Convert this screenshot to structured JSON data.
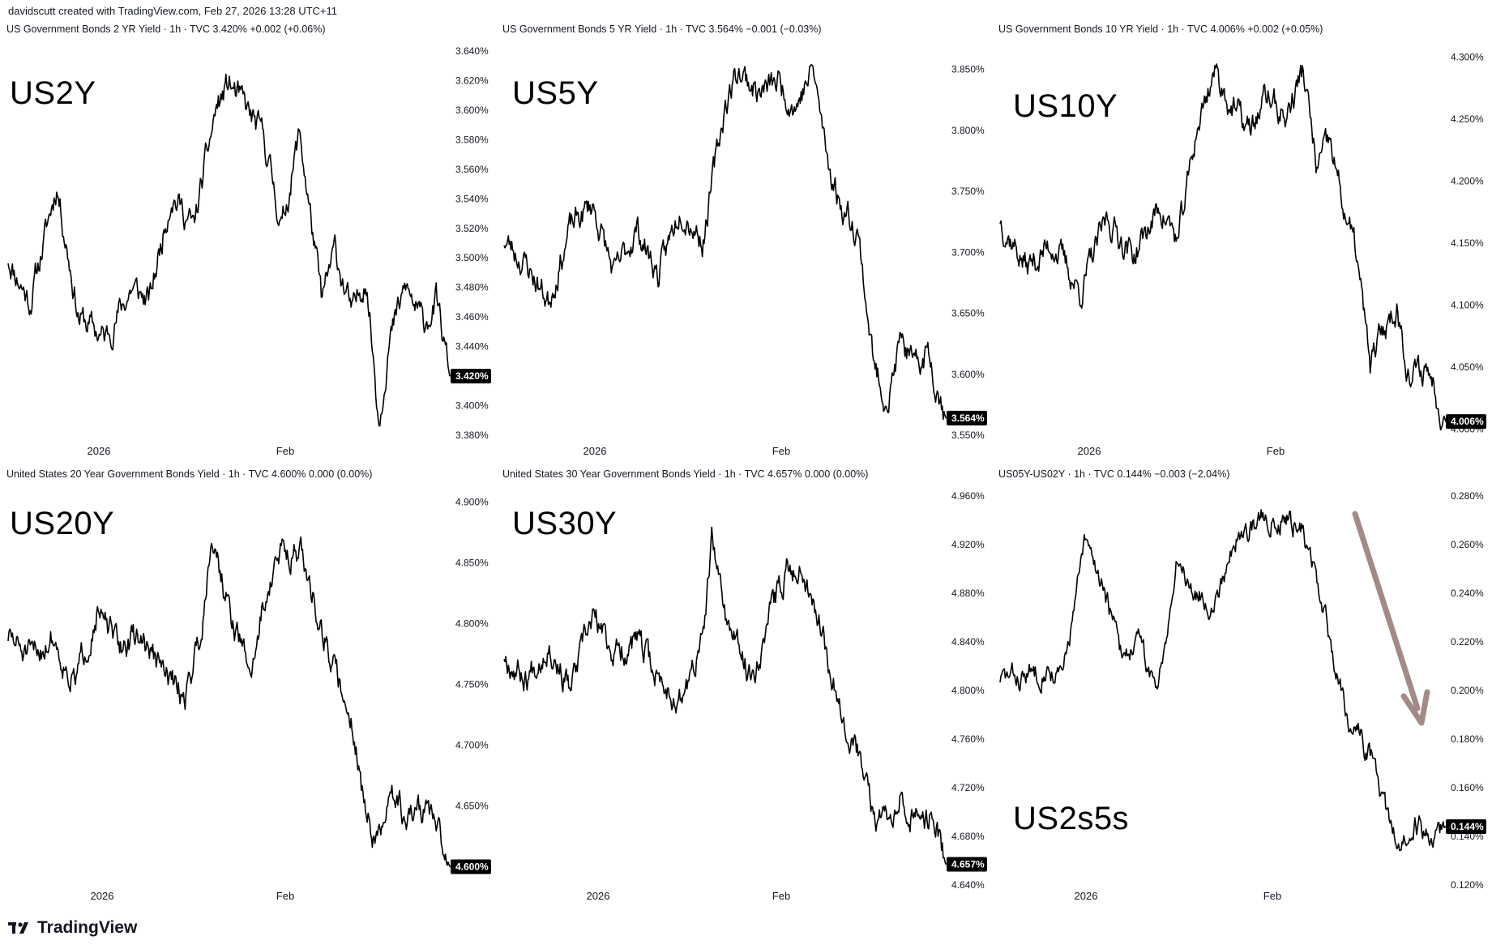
{
  "header": {
    "credit": "davidscutt created with TradingView.com, Feb 27, 2026 13:28 UTC+11"
  },
  "footer": {
    "brand": "TradingView"
  },
  "colors": {
    "line": "#000000",
    "badge": "#000000",
    "arrow": "#a48a86"
  },
  "chart_data": [
    {
      "type": "line",
      "title": "US Government Bonds 2 YR Yield · 1h · TVC  3.420%  +0.002 (+0.06%)",
      "label": "US2Y",
      "yticks": [
        "3.640%",
        "3.620%",
        "3.600%",
        "3.580%",
        "3.560%",
        "3.540%",
        "3.520%",
        "3.500%",
        "3.480%",
        "3.460%",
        "3.440%",
        "3.400%",
        "3.380%"
      ],
      "ylim": [
        3.38,
        3.64
      ],
      "last_value": "3.420%",
      "x_labels": [
        "2026",
        "Feb"
      ],
      "anchors": [
        [
          0,
          3.5
        ],
        [
          0.05,
          3.47
        ],
        [
          0.11,
          3.55
        ],
        [
          0.16,
          3.46
        ],
        [
          0.22,
          3.445
        ],
        [
          0.28,
          3.48
        ],
        [
          0.32,
          3.47
        ],
        [
          0.37,
          3.545
        ],
        [
          0.42,
          3.52
        ],
        [
          0.47,
          3.6
        ],
        [
          0.5,
          3.618
        ],
        [
          0.54,
          3.6
        ],
        [
          0.58,
          3.58
        ],
        [
          0.62,
          3.52
        ],
        [
          0.66,
          3.585
        ],
        [
          0.71,
          3.47
        ],
        [
          0.74,
          3.505
        ],
        [
          0.78,
          3.46
        ],
        [
          0.81,
          3.49
        ],
        [
          0.84,
          3.39
        ],
        [
          0.86,
          3.44
        ],
        [
          0.9,
          3.48
        ],
        [
          0.94,
          3.455
        ],
        [
          0.97,
          3.47
        ],
        [
          1.0,
          3.42
        ]
      ],
      "noise": 0.009,
      "seed": 11
    },
    {
      "type": "line",
      "title": "US Government Bonds 5 YR Yield · 1h · TVC  3.564%  −0.001 (−0.03%)",
      "label": "US5Y",
      "yticks": [
        "3.850%",
        "3.800%",
        "3.750%",
        "3.700%",
        "3.650%",
        "3.600%",
        "3.550%"
      ],
      "ylim": [
        3.55,
        3.865
      ],
      "last_value": "3.564%",
      "x_labels": [
        "2026",
        "Feb"
      ],
      "anchors": [
        [
          0,
          3.71
        ],
        [
          0.05,
          3.69
        ],
        [
          0.1,
          3.66
        ],
        [
          0.15,
          3.72
        ],
        [
          0.2,
          3.74
        ],
        [
          0.25,
          3.68
        ],
        [
          0.3,
          3.72
        ],
        [
          0.35,
          3.68
        ],
        [
          0.4,
          3.74
        ],
        [
          0.45,
          3.71
        ],
        [
          0.5,
          3.82
        ],
        [
          0.53,
          3.85
        ],
        [
          0.58,
          3.83
        ],
        [
          0.62,
          3.84
        ],
        [
          0.66,
          3.82
        ],
        [
          0.7,
          3.85
        ],
        [
          0.73,
          3.78
        ],
        [
          0.76,
          3.74
        ],
        [
          0.8,
          3.72
        ],
        [
          0.84,
          3.6
        ],
        [
          0.87,
          3.58
        ],
        [
          0.9,
          3.63
        ],
        [
          0.93,
          3.6
        ],
        [
          0.96,
          3.62
        ],
        [
          1.0,
          3.564
        ]
      ],
      "noise": 0.011,
      "seed": 23
    },
    {
      "type": "line",
      "title": "US Government Bonds 10 YR Yield · 1h · TVC  4.006%  +0.002 (+0.05%)",
      "label": "US10Y",
      "yticks": [
        "4.300%",
        "4.250%",
        "4.200%",
        "4.150%",
        "4.100%",
        "4.050%",
        "4.000%"
      ],
      "ylim": [
        3.995,
        4.305
      ],
      "last_value": "4.006%",
      "x_labels": [
        "2026",
        "Feb"
      ],
      "anchors": [
        [
          0,
          4.17
        ],
        [
          0.06,
          4.13
        ],
        [
          0.12,
          4.15
        ],
        [
          0.18,
          4.11
        ],
        [
          0.24,
          4.17
        ],
        [
          0.3,
          4.14
        ],
        [
          0.36,
          4.18
        ],
        [
          0.4,
          4.15
        ],
        [
          0.44,
          4.24
        ],
        [
          0.48,
          4.29
        ],
        [
          0.52,
          4.26
        ],
        [
          0.56,
          4.24
        ],
        [
          0.6,
          4.27
        ],
        [
          0.64,
          4.25
        ],
        [
          0.68,
          4.29
        ],
        [
          0.71,
          4.21
        ],
        [
          0.74,
          4.23
        ],
        [
          0.77,
          4.18
        ],
        [
          0.8,
          4.14
        ],
        [
          0.83,
          4.05
        ],
        [
          0.86,
          4.08
        ],
        [
          0.89,
          4.1
        ],
        [
          0.92,
          4.04
        ],
        [
          0.96,
          4.05
        ],
        [
          1.0,
          4.006
        ]
      ],
      "noise": 0.011,
      "seed": 37
    },
    {
      "type": "line",
      "title": "United States 20 Year Government Bonds Yield · 1h · TVC  4.600%  0.000 (0.00%)",
      "label": "US20Y",
      "yticks": [
        "4.900%",
        "4.850%",
        "4.800%",
        "4.750%",
        "4.700%",
        "4.650%",
        "4.600%"
      ],
      "ylim": [
        4.585,
        4.905
      ],
      "last_value": "4.600%",
      "x_labels": [
        "2026",
        "Feb"
      ],
      "anchors": [
        [
          0,
          4.79
        ],
        [
          0.05,
          4.77
        ],
        [
          0.1,
          4.79
        ],
        [
          0.15,
          4.75
        ],
        [
          0.2,
          4.81
        ],
        [
          0.25,
          4.78
        ],
        [
          0.3,
          4.79
        ],
        [
          0.35,
          4.76
        ],
        [
          0.4,
          4.74
        ],
        [
          0.44,
          4.8
        ],
        [
          0.46,
          4.88
        ],
        [
          0.5,
          4.81
        ],
        [
          0.55,
          4.76
        ],
        [
          0.58,
          4.82
        ],
        [
          0.62,
          4.86
        ],
        [
          0.66,
          4.86
        ],
        [
          0.7,
          4.81
        ],
        [
          0.74,
          4.76
        ],
        [
          0.78,
          4.72
        ],
        [
          0.81,
          4.64
        ],
        [
          0.84,
          4.62
        ],
        [
          0.87,
          4.66
        ],
        [
          0.9,
          4.64
        ],
        [
          0.95,
          4.65
        ],
        [
          1.0,
          4.6
        ]
      ],
      "noise": 0.011,
      "seed": 51
    },
    {
      "type": "line",
      "title": "United States 30 Year Government Bonds Yield · 1h · TVC  4.657%  0.000 (0.00%)",
      "label": "US30Y",
      "yticks": [
        "4.960%",
        "4.920%",
        "4.880%",
        "4.840%",
        "4.800%",
        "4.760%",
        "4.720%",
        "4.680%",
        "4.640%"
      ],
      "ylim": [
        4.64,
        4.96
      ],
      "last_value": "4.657%",
      "x_labels": [
        "2026",
        "Feb"
      ],
      "anchors": [
        [
          0,
          4.83
        ],
        [
          0.05,
          4.81
        ],
        [
          0.1,
          4.84
        ],
        [
          0.15,
          4.8
        ],
        [
          0.2,
          4.86
        ],
        [
          0.25,
          4.83
        ],
        [
          0.3,
          4.84
        ],
        [
          0.35,
          4.81
        ],
        [
          0.4,
          4.79
        ],
        [
          0.45,
          4.84
        ],
        [
          0.47,
          4.92
        ],
        [
          0.51,
          4.85
        ],
        [
          0.56,
          4.81
        ],
        [
          0.6,
          4.86
        ],
        [
          0.64,
          4.9
        ],
        [
          0.68,
          4.9
        ],
        [
          0.72,
          4.85
        ],
        [
          0.76,
          4.79
        ],
        [
          0.8,
          4.75
        ],
        [
          0.84,
          4.69
        ],
        [
          0.87,
          4.7
        ],
        [
          0.9,
          4.72
        ],
        [
          0.93,
          4.69
        ],
        [
          0.97,
          4.7
        ],
        [
          1.0,
          4.657
        ]
      ],
      "noise": 0.011,
      "seed": 67
    },
    {
      "type": "line",
      "title": "US05Y-US02Y · 1h · TVC  0.144%  −0.003 (−2.04%)",
      "label": "US2s5s",
      "yticks": [
        "0.280%",
        "0.260%",
        "0.240%",
        "0.220%",
        "0.200%",
        "0.180%",
        "0.160%",
        "0.140%",
        "0.120%"
      ],
      "ylim": [
        0.12,
        0.28
      ],
      "last_value": "0.144%",
      "x_labels": [
        "2026",
        "Feb"
      ],
      "anchors": [
        [
          0,
          0.205
        ],
        [
          0.05,
          0.205
        ],
        [
          0.1,
          0.21
        ],
        [
          0.14,
          0.205
        ],
        [
          0.19,
          0.26
        ],
        [
          0.23,
          0.245
        ],
        [
          0.27,
          0.215
        ],
        [
          0.31,
          0.22
        ],
        [
          0.35,
          0.2
        ],
        [
          0.4,
          0.255
        ],
        [
          0.44,
          0.24
        ],
        [
          0.48,
          0.235
        ],
        [
          0.52,
          0.26
        ],
        [
          0.58,
          0.27
        ],
        [
          0.64,
          0.272
        ],
        [
          0.68,
          0.265
        ],
        [
          0.71,
          0.245
        ],
        [
          0.74,
          0.22
        ],
        [
          0.78,
          0.19
        ],
        [
          0.81,
          0.18
        ],
        [
          0.84,
          0.17
        ],
        [
          0.87,
          0.145
        ],
        [
          0.9,
          0.135
        ],
        [
          0.93,
          0.145
        ],
        [
          0.96,
          0.14
        ],
        [
          1.0,
          0.144
        ]
      ],
      "noise": 0.0045,
      "seed": 83,
      "arrow": true
    }
  ]
}
